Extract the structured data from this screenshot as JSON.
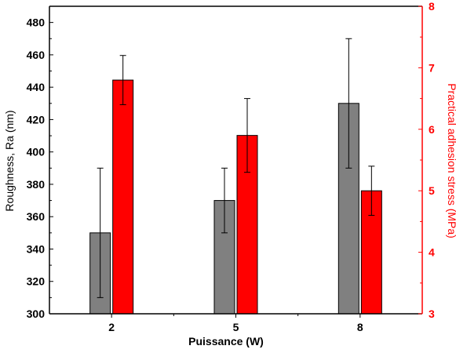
{
  "chart_data": {
    "type": "bar",
    "title": "",
    "xlabel": "Puissance (W)",
    "categories": [
      "2",
      "5",
      "8"
    ],
    "y_left": {
      "label": "Roughness, Ra (nm)",
      "lim": [
        300,
        490
      ],
      "ticks": [
        300,
        320,
        340,
        360,
        380,
        400,
        420,
        440,
        460,
        480
      ]
    },
    "y_right": {
      "label": "Practical adhesion stress (MPa)",
      "lim": [
        3,
        8
      ],
      "ticks": [
        3,
        4,
        5,
        6,
        7,
        8
      ]
    },
    "series": [
      {
        "axis": "left",
        "color": "#808080",
        "values": [
          350,
          370,
          430
        ],
        "error": [
          40,
          20,
          40
        ]
      },
      {
        "axis": "right",
        "color": "#ff0000",
        "values": [
          6.8,
          5.9,
          5.0
        ],
        "error": [
          0.4,
          0.6,
          0.4
        ]
      }
    ],
    "grid": false,
    "legend": "none"
  }
}
